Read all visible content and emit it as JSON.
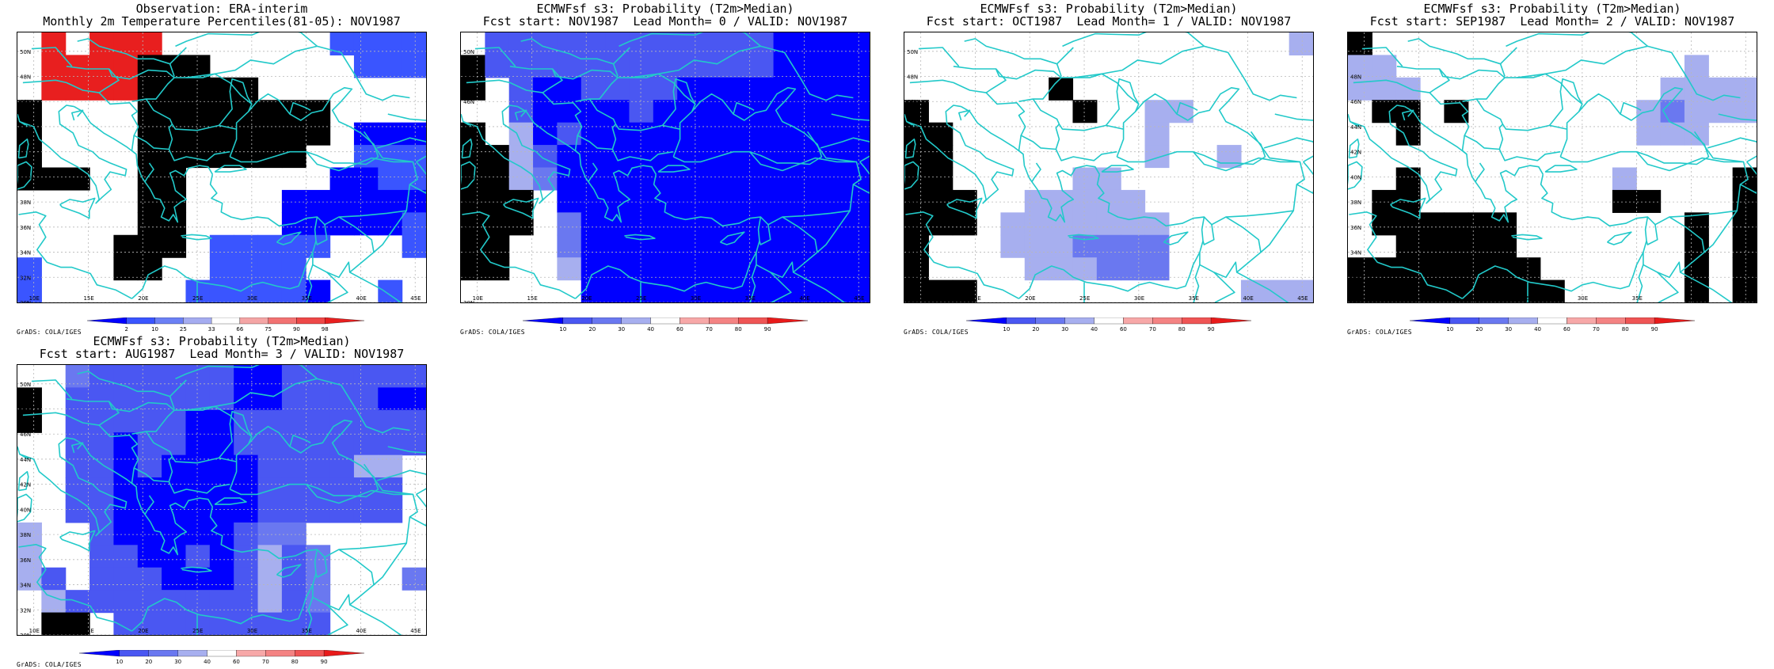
{
  "colors": {
    "coast": "#22c9c9",
    "grid": "#b8b8b8",
    "obs_scale": [
      "#0000ff",
      "#3a55ff",
      "#6b80f5",
      "#a5acf0",
      "#ffffff",
      "#f4a5a5",
      "#f27272",
      "#ee4848",
      "#e81f1f"
    ],
    "prob_scale": [
      "#0000ff",
      "#4a57f2",
      "#6a78f0",
      "#a7afef",
      "#ffffff",
      "#f7a8a8",
      "#f48383",
      "#ef5555",
      "#e81a1a"
    ]
  },
  "map_axes": {
    "lat_labels": [
      "50N",
      "48N",
      "46N",
      "44N",
      "42N",
      "40N",
      "38N",
      "36N",
      "34N",
      "32N",
      "30N"
    ],
    "lon_labels": [
      "10E",
      "15E",
      "20E",
      "25E",
      "30E",
      "35E",
      "40E",
      "45E"
    ]
  },
  "credit_text": "GrADS: COLA/IGES",
  "panels": [
    {
      "title1": "Observation: ERA-interim",
      "title2": "Monthly 2m Temperature Percentiles(81-05): NOV1987",
      "colorbar_labels": [
        "2",
        "10",
        "25",
        "33",
        "66",
        "75",
        "90",
        "98"
      ],
      "scale": "obs",
      "cells": [
        [
          0,
          4,
          0,
          4,
          4,
          4,
          0,
          0,
          0,
          0,
          0,
          0,
          0,
          -3,
          -3,
          -3,
          -3
        ],
        [
          0,
          4,
          4,
          4,
          4,
          6,
          5,
          5,
          0,
          0,
          0,
          0,
          0,
          0,
          -3,
          -3,
          -3
        ],
        [
          0,
          4,
          4,
          4,
          4,
          6,
          6,
          6,
          6,
          6,
          0,
          0,
          0,
          0,
          0,
          0,
          0
        ],
        [
          5,
          0,
          0,
          0,
          0,
          6,
          6,
          6,
          6,
          6,
          6,
          6,
          6,
          0,
          0,
          0,
          0
        ],
        [
          5,
          0,
          0,
          0,
          0,
          6,
          6,
          6,
          6,
          6,
          6,
          6,
          6,
          0,
          -4,
          -4,
          -4
        ],
        [
          5,
          0,
          0,
          0,
          0,
          5,
          6,
          6,
          6,
          6,
          6,
          6,
          0,
          0,
          -3,
          -3,
          -3
        ],
        [
          5,
          5,
          5,
          0,
          0,
          5,
          5,
          0,
          0,
          0,
          0,
          0,
          0,
          -4,
          -4,
          -3,
          -3
        ],
        [
          0,
          0,
          0,
          0,
          0,
          5,
          5,
          0,
          0,
          0,
          0,
          -4,
          -4,
          -4,
          -4,
          -4,
          -4
        ],
        [
          0,
          0,
          0,
          0,
          0,
          5,
          5,
          0,
          0,
          0,
          0,
          -4,
          -4,
          -4,
          -4,
          -4,
          -3
        ],
        [
          0,
          0,
          0,
          0,
          5,
          5,
          5,
          0,
          -3,
          -3,
          -3,
          -3,
          -3,
          0,
          0,
          0,
          -3
        ],
        [
          -3,
          0,
          0,
          0,
          5,
          5,
          0,
          0,
          -3,
          -3,
          -3,
          -3,
          0,
          0,
          0,
          0,
          0
        ],
        [
          -3,
          0,
          0,
          0,
          0,
          0,
          0,
          -3,
          -3,
          -3,
          -3,
          -3,
          -4,
          0,
          0,
          -3,
          0
        ]
      ]
    },
    {
      "title1": "ECMWFsf s3: Probability (T2m>Median)",
      "title2": "Fcst start: NOV1987  Lead Month= 0 / VALID: NOV1987",
      "colorbar_labels": [
        "10",
        "20",
        "30",
        "40",
        "60",
        "70",
        "80",
        "90"
      ],
      "scale": "prob",
      "cells": [
        [
          0,
          -3,
          -3,
          -3,
          -3,
          -3,
          -3,
          -3,
          -3,
          -3,
          -3,
          -3,
          -3,
          -4,
          -4,
          -4,
          -4
        ],
        [
          5,
          -3,
          -3,
          -3,
          -3,
          -3,
          -3,
          -3,
          -3,
          -3,
          -3,
          -3,
          -3,
          -4,
          -4,
          -4,
          -4
        ],
        [
          5,
          0,
          -3,
          -4,
          -4,
          -3,
          -3,
          -3,
          -3,
          -4,
          -4,
          -4,
          -4,
          -4,
          -4,
          -4,
          -4
        ],
        [
          0,
          0,
          -3,
          -4,
          -4,
          -4,
          -4,
          -3,
          -4,
          -4,
          -4,
          -4,
          -4,
          -4,
          -4,
          -4,
          -4
        ],
        [
          5,
          0,
          -1,
          -4,
          -3,
          -4,
          -4,
          -4,
          -4,
          -4,
          -4,
          -4,
          -4,
          -4,
          -4,
          -4,
          -4
        ],
        [
          8,
          8,
          -1,
          -3,
          -4,
          -4,
          -4,
          -4,
          -4,
          -4,
          -4,
          -4,
          -4,
          -4,
          -4,
          -4,
          -4
        ],
        [
          8,
          8,
          -1,
          -2,
          -4,
          -4,
          -4,
          -4,
          -4,
          -4,
          -4,
          -4,
          -4,
          -4,
          -4,
          -4,
          -4
        ],
        [
          8,
          6,
          6,
          0,
          -4,
          -4,
          -4,
          -4,
          -4,
          -4,
          -4,
          -4,
          -4,
          -4,
          -4,
          -4,
          -4
        ],
        [
          8,
          6,
          6,
          0,
          -2,
          -4,
          -4,
          -4,
          -4,
          -4,
          -4,
          -4,
          -4,
          -4,
          -4,
          -4,
          -4
        ],
        [
          7,
          6,
          0,
          0,
          -2,
          -4,
          -4,
          -4,
          -4,
          -4,
          -4,
          -4,
          -4,
          -4,
          -4,
          -4,
          -4
        ],
        [
          7,
          6,
          0,
          0,
          -1,
          -4,
          -4,
          -4,
          -4,
          -4,
          -4,
          -4,
          -4,
          -4,
          -4,
          -4,
          -4
        ],
        [
          0,
          0,
          0,
          0,
          0,
          -4,
          -4,
          -4,
          -4,
          -4,
          -4,
          -4,
          -4,
          -4,
          -4,
          -4,
          -4
        ]
      ]
    },
    {
      "title1": "ECMWFsf s3: Probability (T2m>Median)",
      "title2": "Fcst start: OCT1987  Lead Month= 1 / VALID: NOV1987",
      "colorbar_labels": [
        "10",
        "20",
        "30",
        "40",
        "60",
        "70",
        "80",
        "90"
      ],
      "scale": "prob",
      "cells": [
        [
          0,
          0,
          0,
          0,
          0,
          0,
          0,
          0,
          0,
          0,
          0,
          0,
          0,
          0,
          0,
          0,
          -1
        ],
        [
          0,
          0,
          0,
          0,
          0,
          0,
          0,
          0,
          0,
          0,
          0,
          0,
          0,
          0,
          0,
          0,
          0
        ],
        [
          0,
          0,
          0,
          0,
          0,
          0,
          5,
          0,
          0,
          0,
          0,
          0,
          0,
          0,
          0,
          0,
          0
        ],
        [
          5,
          0,
          0,
          0,
          0,
          0,
          0,
          5,
          0,
          0,
          -1,
          -1,
          0,
          0,
          0,
          0,
          0
        ],
        [
          5,
          5,
          0,
          0,
          0,
          0,
          0,
          0,
          0,
          0,
          -1,
          0,
          0,
          0,
          0,
          0,
          0
        ],
        [
          5,
          5,
          0,
          0,
          0,
          0,
          0,
          0,
          0,
          0,
          -1,
          0,
          0,
          -1,
          0,
          0,
          0
        ],
        [
          6,
          6,
          0,
          0,
          0,
          0,
          0,
          -1,
          -1,
          0,
          0,
          0,
          0,
          0,
          0,
          0,
          0
        ],
        [
          6,
          6,
          5,
          0,
          0,
          -1,
          -1,
          -1,
          -1,
          -1,
          0,
          0,
          0,
          0,
          0,
          0,
          0
        ],
        [
          6,
          6,
          5,
          0,
          -1,
          -1,
          -1,
          -1,
          -1,
          -1,
          -1,
          0,
          0,
          0,
          0,
          0,
          0
        ],
        [
          5,
          0,
          0,
          0,
          -1,
          -1,
          -1,
          -2,
          -2,
          -2,
          -2,
          0,
          0,
          0,
          0,
          0,
          0
        ],
        [
          5,
          0,
          0,
          0,
          0,
          -1,
          -1,
          -1,
          -2,
          -2,
          -2,
          0,
          0,
          0,
          0,
          0,
          0
        ],
        [
          5,
          5,
          5,
          0,
          0,
          0,
          0,
          0,
          0,
          0,
          0,
          0,
          0,
          0,
          -1,
          -1,
          -1
        ]
      ]
    },
    {
      "title1": "ECMWFsf s3: Probability (T2m>Median)",
      "title2": "Fcst start: SEP1987  Lead Month= 2 / VALID: NOV1987",
      "colorbar_labels": [
        "10",
        "20",
        "30",
        "40",
        "60",
        "70",
        "80",
        "90"
      ],
      "scale": "prob",
      "cells": [
        [
          5,
          0,
          0,
          0,
          0,
          0,
          0,
          0,
          0,
          0,
          0,
          0,
          0,
          0,
          0,
          0,
          0
        ],
        [
          -1,
          -1,
          0,
          0,
          0,
          0,
          0,
          0,
          0,
          0,
          0,
          0,
          0,
          0,
          -1,
          0,
          0
        ],
        [
          -1,
          -1,
          -1,
          0,
          0,
          0,
          0,
          0,
          0,
          0,
          0,
          0,
          0,
          -1,
          -1,
          -1,
          -1
        ],
        [
          0,
          5,
          5,
          0,
          5,
          0,
          0,
          0,
          0,
          0,
          0,
          0,
          -1,
          -2,
          -1,
          -1,
          -1
        ],
        [
          0,
          0,
          5,
          0,
          0,
          0,
          0,
          0,
          0,
          0,
          0,
          0,
          -1,
          -1,
          -1,
          0,
          0
        ],
        [
          0,
          0,
          0,
          0,
          0,
          0,
          0,
          0,
          0,
          0,
          0,
          0,
          0,
          0,
          0,
          0,
          0
        ],
        [
          0,
          0,
          5,
          0,
          0,
          0,
          0,
          0,
          0,
          0,
          0,
          -1,
          0,
          0,
          0,
          0,
          5
        ],
        [
          0,
          5,
          5,
          0,
          0,
          0,
          0,
          0,
          0,
          0,
          0,
          5,
          5,
          0,
          0,
          0,
          5
        ],
        [
          0,
          5,
          5,
          5,
          5,
          5,
          5,
          0,
          0,
          0,
          0,
          0,
          0,
          0,
          5,
          0,
          5
        ],
        [
          0,
          0,
          5,
          5,
          5,
          5,
          5,
          0,
          0,
          0,
          0,
          0,
          0,
          0,
          5,
          0,
          5
        ],
        [
          5,
          5,
          5,
          5,
          5,
          5,
          6,
          6,
          0,
          0,
          0,
          0,
          0,
          0,
          5,
          0,
          6
        ],
        [
          6,
          5,
          6,
          6,
          6,
          6,
          7,
          6,
          6,
          0,
          0,
          0,
          0,
          0,
          5,
          0,
          6
        ]
      ]
    },
    {
      "title1": "ECMWFsf s3: Probability (T2m>Median)",
      "title2": "Fcst start: AUG1987  Lead Month= 3 / VALID: NOV1987",
      "colorbar_labels": [
        "10",
        "20",
        "30",
        "40",
        "60",
        "70",
        "80",
        "90"
      ],
      "scale": "prob",
      "cells": [
        [
          0,
          0,
          -2,
          -3,
          -3,
          -3,
          -3,
          -3,
          -3,
          -4,
          -4,
          -3,
          -3,
          -3,
          -3,
          -3,
          -3
        ],
        [
          5,
          0,
          -3,
          -3,
          -3,
          -3,
          -3,
          -3,
          -3,
          -4,
          -4,
          -3,
          -3,
          -3,
          -3,
          -4,
          -4
        ],
        [
          5,
          0,
          -3,
          -3,
          -3,
          -3,
          -3,
          -4,
          -4,
          -3,
          -3,
          -3,
          -3,
          -3,
          -3,
          -3,
          -3
        ],
        [
          0,
          0,
          -3,
          -3,
          -4,
          -3,
          -3,
          -4,
          -4,
          -3,
          -3,
          -3,
          -3,
          -3,
          -3,
          -3,
          -3
        ],
        [
          0,
          0,
          -3,
          -3,
          -4,
          -3,
          -4,
          -4,
          -4,
          -4,
          -3,
          -3,
          -3,
          -3,
          -1,
          -1,
          0
        ],
        [
          0,
          0,
          -3,
          -3,
          -4,
          -4,
          -4,
          -4,
          -4,
          -4,
          -3,
          -3,
          -3,
          -3,
          -3,
          -3,
          0
        ],
        [
          0,
          0,
          -3,
          -3,
          -4,
          -4,
          -4,
          -4,
          -4,
          -4,
          -3,
          -3,
          -3,
          -3,
          -3,
          -3,
          0
        ],
        [
          -1,
          0,
          0,
          -3,
          -4,
          -4,
          -4,
          -4,
          -4,
          -3,
          -2,
          -2,
          0,
          0,
          0,
          0,
          0
        ],
        [
          -1,
          0,
          0,
          -3,
          -3,
          -4,
          -4,
          -3,
          -4,
          -3,
          -1,
          -3,
          -2,
          0,
          0,
          0,
          0
        ],
        [
          -1,
          -3,
          0,
          -3,
          -3,
          -3,
          -4,
          -4,
          -4,
          -3,
          -1,
          -3,
          -2,
          0,
          0,
          0,
          -2
        ],
        [
          0,
          -1,
          -3,
          -3,
          -3,
          -3,
          -3,
          -3,
          -3,
          -3,
          -1,
          -3,
          -2,
          0,
          0,
          0,
          0
        ],
        [
          0,
          5,
          5,
          0,
          -3,
          -3,
          -3,
          -3,
          -3,
          -3,
          -3,
          -3,
          -3,
          0,
          0,
          0,
          0
        ]
      ]
    }
  ]
}
